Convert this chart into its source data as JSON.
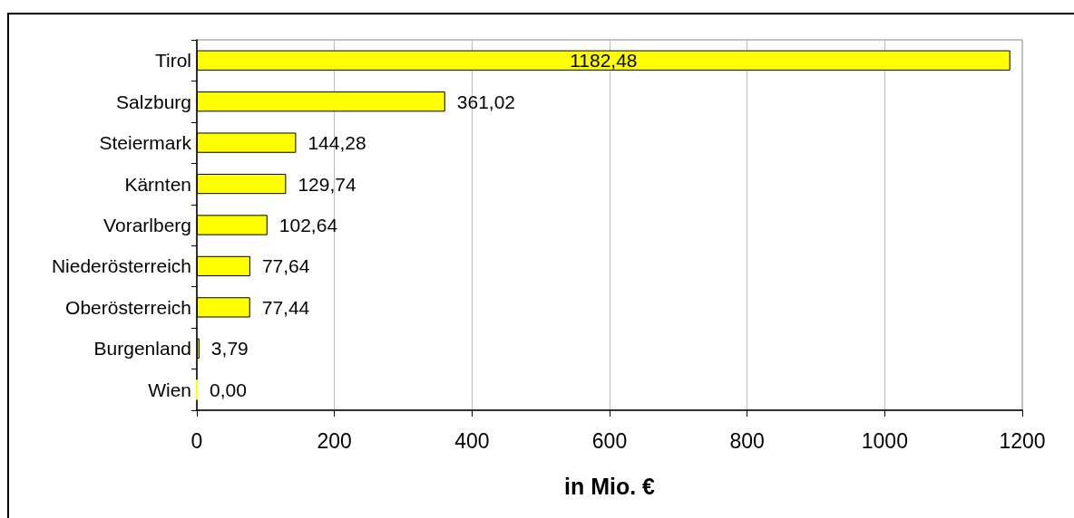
{
  "chart_data": {
    "type": "bar",
    "orientation": "horizontal",
    "xlabel": "in Mio. €",
    "categories": [
      "Tirol",
      "Salzburg",
      "Steiermark",
      "Kärnten",
      "Vorarlberg",
      "Niederösterreich",
      "Oberösterreich",
      "Burgenland",
      "Wien"
    ],
    "values": [
      1182.48,
      361.02,
      144.28,
      129.74,
      102.64,
      77.64,
      77.44,
      3.79,
      0.0
    ],
    "value_labels": [
      "1182,48",
      "361,02",
      "144,28",
      "129,74",
      "102,64",
      "77,64",
      "77,44",
      "3,79",
      "0,00"
    ],
    "color": "#ffff00",
    "xlim": [
      0,
      1200
    ],
    "xticks": [
      0,
      200,
      400,
      600,
      800,
      1000,
      1200
    ],
    "grid": "x"
  }
}
